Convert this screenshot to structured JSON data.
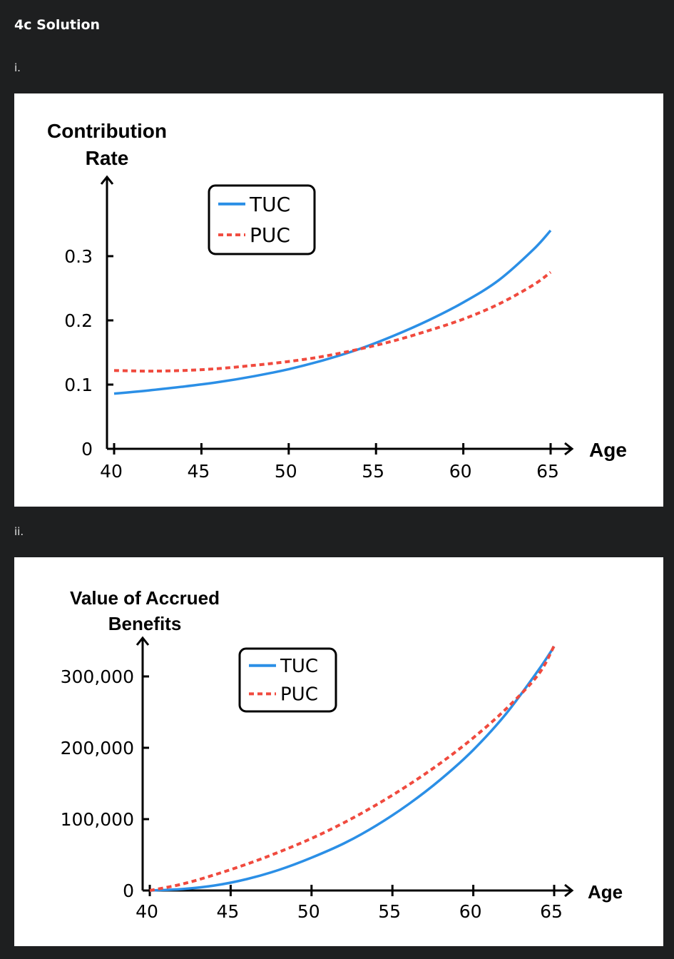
{
  "page": {
    "heading": "4c Solution",
    "part1_label": "i.",
    "part2_label": "ii."
  },
  "colors": {
    "tuc": "#2b8fe6",
    "puc": "#f04a3e",
    "background": "#1e1f20",
    "panel": "#ffffff"
  },
  "chart_data": [
    {
      "type": "line",
      "ylabel_lines": [
        "Contribution",
        "Rate"
      ],
      "xlabel": "Age",
      "xlim": [
        40,
        65
      ],
      "ylim": [
        0,
        0.35
      ],
      "x_ticks": [
        40,
        45,
        50,
        55,
        60,
        65
      ],
      "x_tick_labels": [
        "40",
        "45",
        "50",
        "55",
        "60",
        "65"
      ],
      "y_ticks": [
        0,
        0.1,
        0.2,
        0.3
      ],
      "y_tick_labels": [
        "0",
        "0.1",
        "0.2",
        "0.3"
      ],
      "legend_position": "top-center",
      "series": [
        {
          "name": "TUC",
          "style": "solid",
          "x": [
            40,
            42,
            44,
            46,
            48,
            50,
            52,
            54,
            56,
            58,
            60,
            62,
            64,
            65
          ],
          "y": [
            0.086,
            0.091,
            0.097,
            0.104,
            0.113,
            0.124,
            0.138,
            0.155,
            0.176,
            0.2,
            0.228,
            0.262,
            0.31,
            0.34
          ]
        },
        {
          "name": "PUC",
          "style": "dashed",
          "x": [
            40,
            42,
            44,
            46,
            48,
            50,
            52,
            54,
            56,
            58,
            60,
            62,
            64,
            65
          ],
          "y": [
            0.122,
            0.121,
            0.122,
            0.125,
            0.13,
            0.136,
            0.144,
            0.155,
            0.168,
            0.184,
            0.202,
            0.225,
            0.255,
            0.275
          ]
        }
      ]
    },
    {
      "type": "line",
      "ylabel_lines": [
        "Value of Accrued",
        "Benefits"
      ],
      "xlabel": "Age",
      "xlim": [
        40,
        65
      ],
      "ylim": [
        0,
        360000
      ],
      "x_ticks": [
        40,
        45,
        50,
        55,
        60,
        65
      ],
      "x_tick_labels": [
        "40",
        "45",
        "50",
        "55",
        "60",
        "65"
      ],
      "y_ticks": [
        0,
        100000,
        200000,
        300000
      ],
      "y_tick_labels": [
        "0",
        "100,000",
        "200,000",
        "300,000"
      ],
      "legend_position": "top-center",
      "series": [
        {
          "name": "TUC",
          "style": "solid",
          "x": [
            40,
            42,
            44,
            46,
            48,
            50,
            52,
            54,
            56,
            58,
            60,
            62,
            64,
            65
          ],
          "y": [
            0,
            2000,
            7000,
            16000,
            29000,
            46000,
            66000,
            91000,
            121000,
            156000,
            197000,
            247000,
            308000,
            342000
          ]
        },
        {
          "name": "PUC",
          "style": "dashed",
          "x": [
            40,
            42,
            44,
            46,
            48,
            50,
            52,
            54,
            56,
            58,
            60,
            62,
            64,
            65
          ],
          "y": [
            0,
            9000,
            22000,
            37000,
            54000,
            73000,
            95000,
            120000,
            148000,
            179000,
            214000,
            254000,
            302000,
            343000
          ]
        }
      ]
    }
  ]
}
